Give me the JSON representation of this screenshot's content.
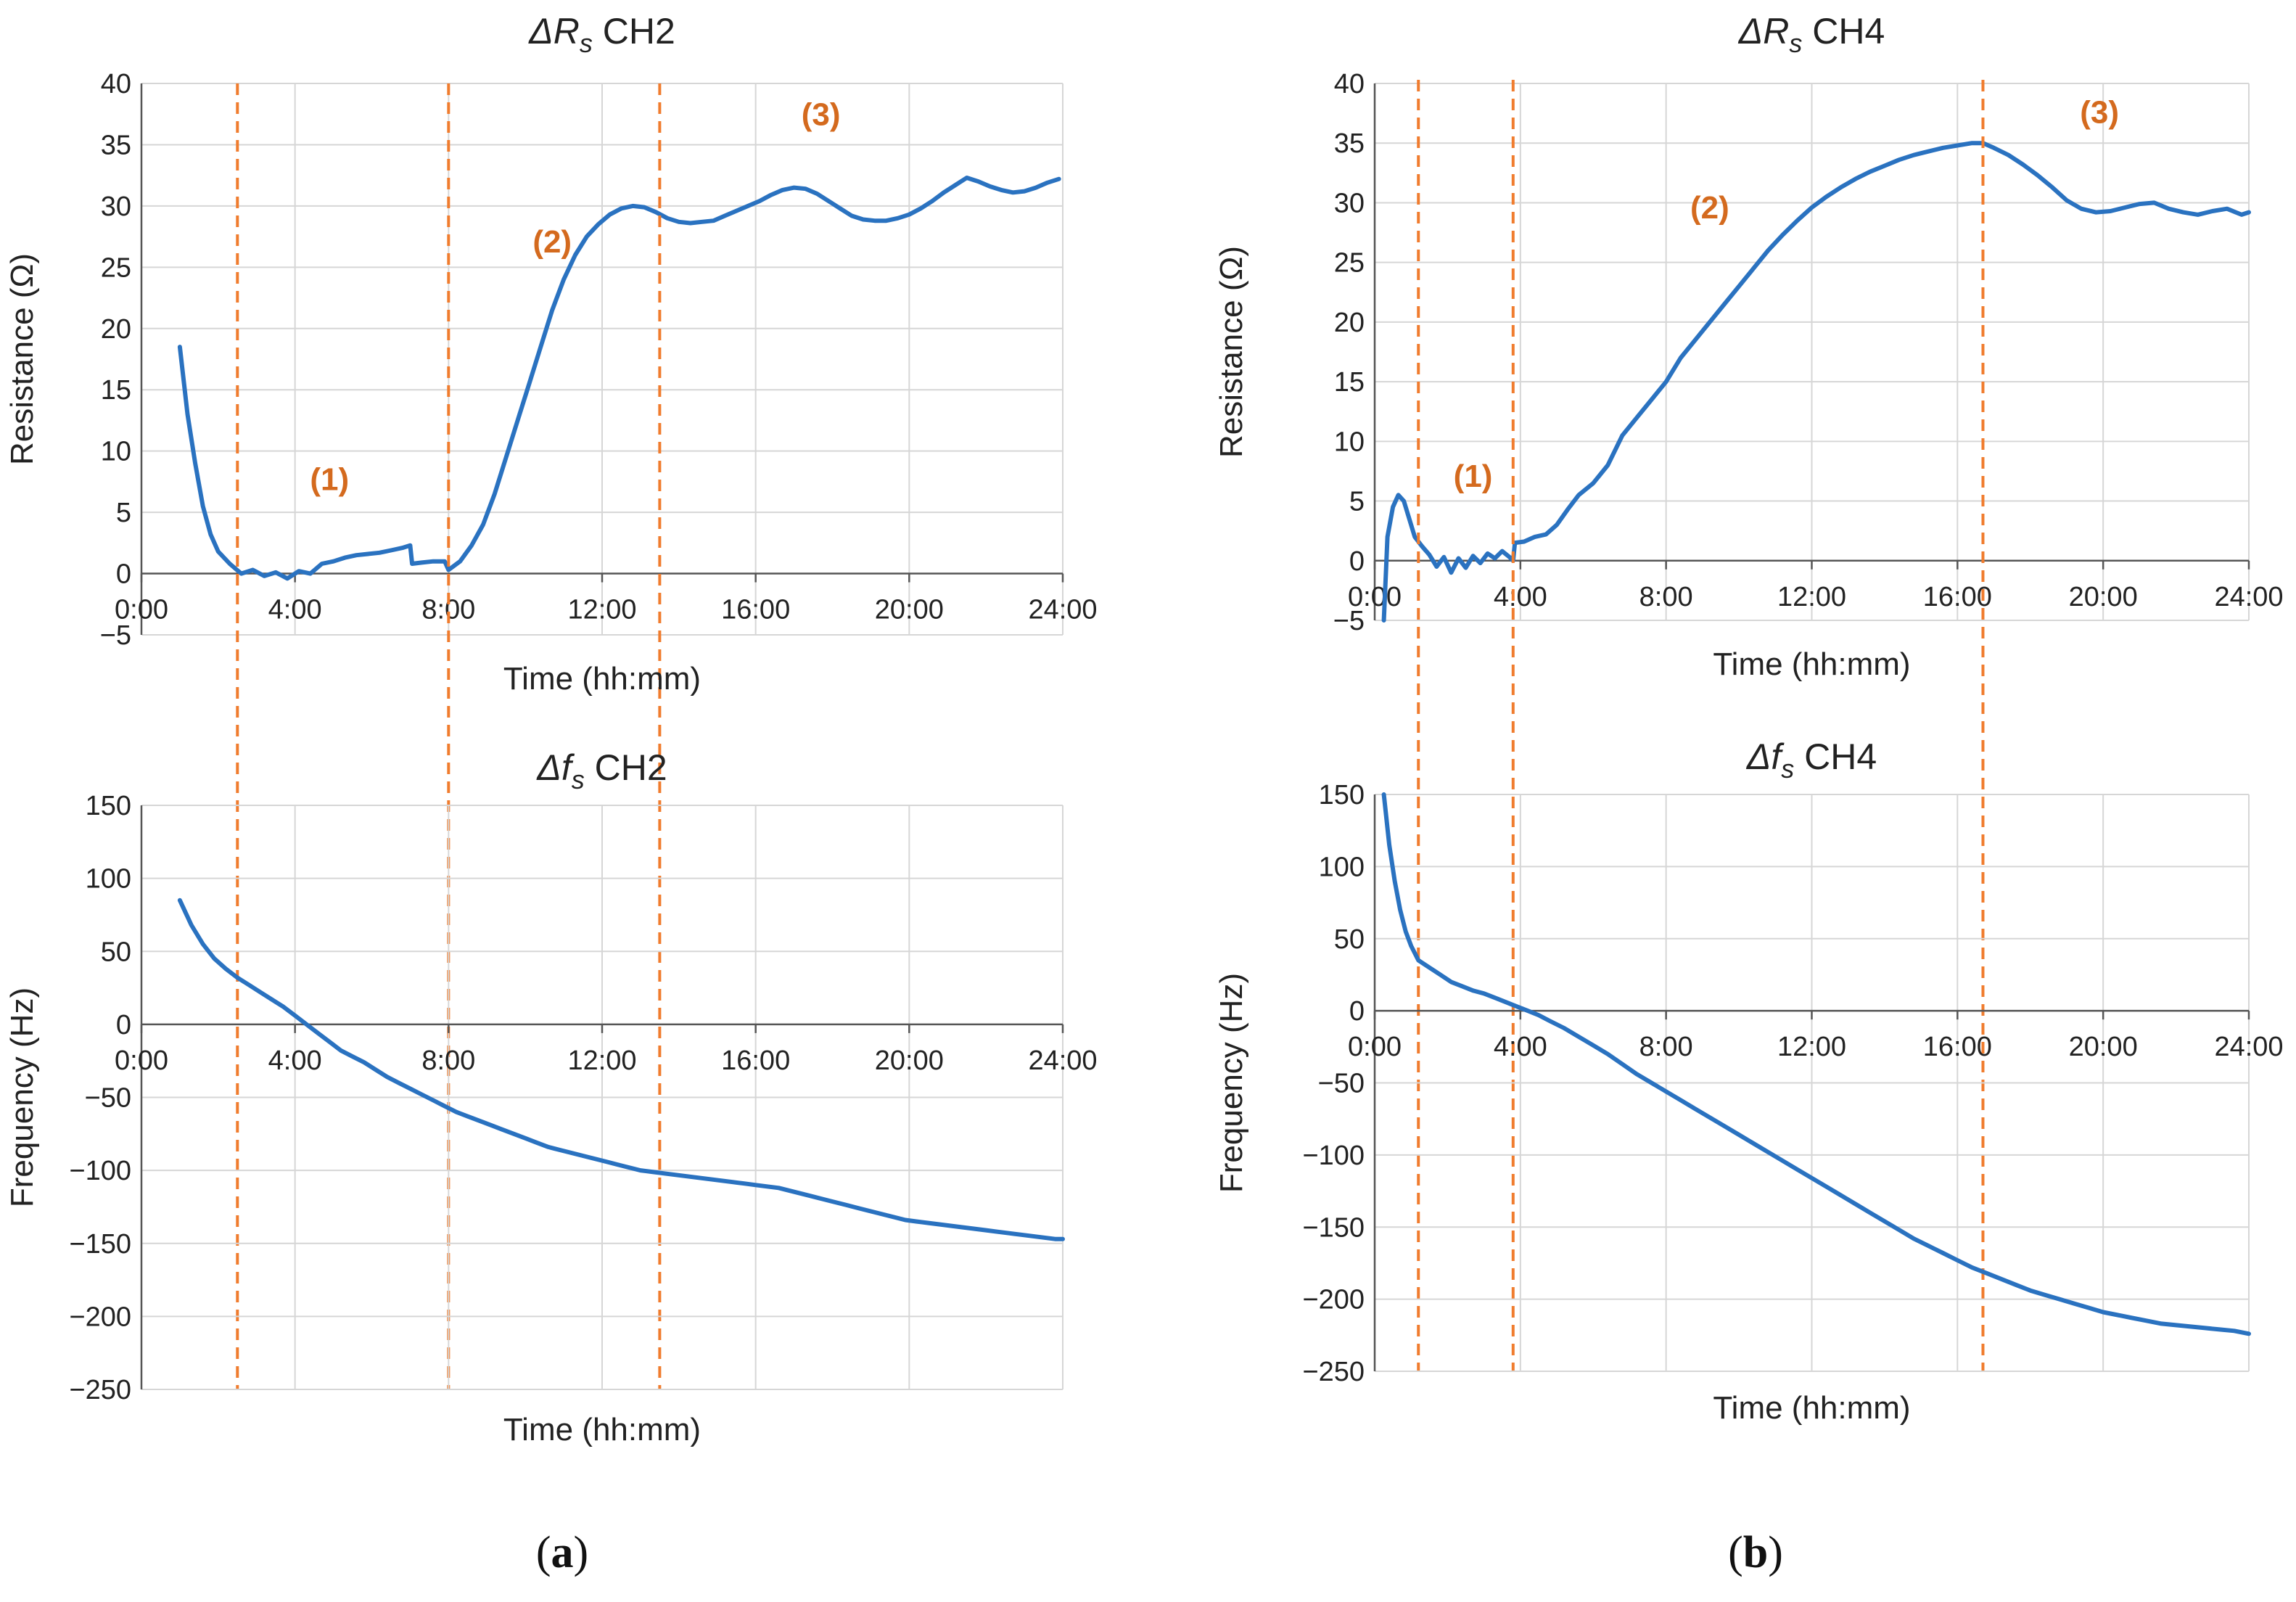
{
  "colors": {
    "series": "#2a72c0",
    "marker": "#f07c2e",
    "phase_label": "#d46a1e",
    "grid": "#d6d6d6",
    "axis": "#555555"
  },
  "panel_labels": [
    {
      "open": "(",
      "letter": "a",
      "close": ")"
    },
    {
      "open": "(",
      "letter": "b",
      "close": ")"
    }
  ],
  "chart_data": [
    {
      "id": "ch2_resistance",
      "type": "line",
      "title_sym": "ΔR",
      "title_sub": "s",
      "title_rest": " CH2",
      "xlabel": "Time (hh:mm)",
      "ylabel": "Resistance (Ω)",
      "xlim": [
        0,
        24
      ],
      "ylim": [
        -5,
        40
      ],
      "xticks": [
        0,
        4,
        8,
        12,
        16,
        20,
        24
      ],
      "xtick_labels": [
        "0:00",
        "4:00",
        "8:00",
        "12:00",
        "16:00",
        "20:00",
        "24:00"
      ],
      "yticks": [
        -5,
        0,
        5,
        10,
        15,
        20,
        25,
        30,
        35,
        40
      ],
      "ytick_labels": [
        "−5",
        "0",
        "5",
        "10",
        "15",
        "20",
        "25",
        "30",
        "35",
        "40"
      ],
      "markers": [
        2.5,
        8.0,
        13.5
      ],
      "annotations": [
        {
          "text": "(1)",
          "x": 4.9,
          "y": 6.8
        },
        {
          "text": "(2)",
          "x": 10.7,
          "y": 26.2
        },
        {
          "text": "(3)",
          "x": 17.7,
          "y": 36.6
        }
      ],
      "series": [
        {
          "name": "ΔRs CH2",
          "x": [
            1.0,
            1.2,
            1.4,
            1.6,
            1.8,
            2.0,
            2.3,
            2.6,
            2.9,
            3.2,
            3.5,
            3.8,
            4.1,
            4.4,
            4.7,
            5.0,
            5.3,
            5.6,
            5.9,
            6.2,
            6.5,
            6.8,
            7.0,
            7.05,
            7.3,
            7.6,
            7.9,
            8.0,
            8.3,
            8.6,
            8.9,
            9.2,
            9.5,
            9.8,
            10.1,
            10.4,
            10.7,
            11.0,
            11.3,
            11.6,
            11.9,
            12.2,
            12.5,
            12.8,
            13.1,
            13.4,
            13.7,
            14.0,
            14.3,
            14.6,
            14.9,
            15.2,
            15.5,
            15.8,
            16.1,
            16.4,
            16.7,
            17.0,
            17.3,
            17.6,
            17.9,
            18.2,
            18.5,
            18.8,
            19.1,
            19.4,
            19.7,
            20.0,
            20.3,
            20.6,
            20.9,
            21.2,
            21.5,
            21.8,
            22.1,
            22.4,
            22.7,
            23.0,
            23.3,
            23.6,
            23.9
          ],
          "y": [
            18.5,
            13.0,
            9.0,
            5.5,
            3.2,
            1.8,
            0.8,
            0.0,
            0.3,
            -0.2,
            0.1,
            -0.4,
            0.2,
            0.0,
            0.8,
            1.0,
            1.3,
            1.5,
            1.6,
            1.7,
            1.9,
            2.1,
            2.3,
            0.8,
            0.9,
            1.0,
            1.0,
            0.3,
            1.0,
            2.3,
            4.0,
            6.5,
            9.5,
            12.5,
            15.5,
            18.5,
            21.5,
            24.0,
            26.0,
            27.5,
            28.5,
            29.3,
            29.8,
            30.0,
            29.9,
            29.5,
            29.0,
            28.7,
            28.6,
            28.7,
            28.8,
            29.2,
            29.6,
            30.0,
            30.4,
            30.9,
            31.3,
            31.5,
            31.4,
            31.0,
            30.4,
            29.8,
            29.2,
            28.9,
            28.8,
            28.8,
            29.0,
            29.3,
            29.8,
            30.4,
            31.1,
            31.7,
            32.3,
            32.0,
            31.6,
            31.3,
            31.1,
            31.2,
            31.5,
            31.9,
            32.2
          ]
        }
      ]
    },
    {
      "id": "ch2_frequency",
      "type": "line",
      "title_sym": "Δf",
      "title_sub": "s",
      "title_rest": " CH2",
      "xlabel": "Time (hh:mm)",
      "ylabel": "Frequency (Hz)",
      "xlim": [
        0,
        24
      ],
      "ylim": [
        -250,
        150
      ],
      "xticks": [
        0,
        4,
        8,
        12,
        16,
        20,
        24
      ],
      "xtick_labels": [
        "0:00",
        "4:00",
        "8:00",
        "12:00",
        "16:00",
        "20:00",
        "24:00"
      ],
      "yticks": [
        -250,
        -200,
        -150,
        -100,
        -50,
        0,
        50,
        100,
        150
      ],
      "ytick_labels": [
        "−250",
        "−200",
        "−150",
        "−100",
        "−50",
        "0",
        "50",
        "100",
        "150"
      ],
      "markers": [
        2.5,
        8.0,
        13.5
      ],
      "annotations": [],
      "series": [
        {
          "name": "Δfs CH2",
          "x": [
            1.0,
            1.3,
            1.6,
            1.9,
            2.2,
            2.5,
            2.8,
            3.1,
            3.4,
            3.7,
            4.0,
            4.3,
            4.6,
            4.9,
            5.2,
            5.5,
            5.8,
            6.1,
            6.4,
            6.7,
            7.0,
            7.3,
            7.6,
            7.9,
            8.2,
            8.5,
            8.8,
            9.1,
            9.4,
            9.7,
            10.0,
            10.3,
            10.6,
            10.9,
            11.2,
            11.5,
            11.8,
            12.1,
            12.4,
            12.7,
            13.0,
            13.3,
            13.6,
            13.9,
            14.2,
            14.5,
            14.8,
            15.1,
            15.4,
            15.7,
            16.0,
            16.3,
            16.6,
            16.9,
            17.2,
            17.5,
            17.8,
            18.1,
            18.4,
            18.7,
            19.0,
            19.3,
            19.6,
            19.9,
            20.2,
            20.5,
            20.8,
            21.1,
            21.4,
            21.7,
            22.0,
            22.3,
            22.6,
            22.9,
            23.2,
            23.5,
            23.8,
            24.0
          ],
          "y": [
            85,
            68,
            55,
            45,
            38,
            32,
            27,
            22,
            17,
            12,
            6,
            0,
            -6,
            -12,
            -18,
            -22,
            -26,
            -31,
            -36,
            -40,
            -44,
            -48,
            -52,
            -56,
            -60,
            -63,
            -66,
            -69,
            -72,
            -75,
            -78,
            -81,
            -84,
            -86,
            -88,
            -90,
            -92,
            -94,
            -96,
            -98,
            -100,
            -101,
            -102,
            -103,
            -104,
            -105,
            -106,
            -107,
            -108,
            -109,
            -110,
            -111,
            -112,
            -114,
            -116,
            -118,
            -120,
            -122,
            -124,
            -126,
            -128,
            -130,
            -132,
            -134,
            -135,
            -136,
            -137,
            -138,
            -139,
            -140,
            -141,
            -142,
            -143,
            -144,
            -145,
            -146,
            -147,
            -147
          ]
        }
      ]
    },
    {
      "id": "ch4_resistance",
      "type": "line",
      "title_sym": "ΔR",
      "title_sub": "s",
      "title_rest": " CH4",
      "xlabel": "Time (hh:mm)",
      "ylabel": "Resistance (Ω)",
      "xlim": [
        0,
        24
      ],
      "ylim": [
        -5,
        40
      ],
      "xticks": [
        0,
        4,
        8,
        12,
        16,
        20,
        24
      ],
      "xtick_labels": [
        "0:00",
        "4:00",
        "8:00",
        "12:00",
        "16:00",
        "20:00",
        "24:00"
      ],
      "yticks": [
        -5,
        0,
        5,
        10,
        15,
        20,
        25,
        30,
        35,
        40
      ],
      "ytick_labels": [
        "−5",
        "0",
        "5",
        "10",
        "15",
        "20",
        "25",
        "30",
        "35",
        "40"
      ],
      "markers": [
        1.2,
        3.8,
        16.7
      ],
      "annotations": [
        {
          "text": "(1)",
          "x": 2.7,
          "y": 6.2
        },
        {
          "text": "(2)",
          "x": 9.2,
          "y": 28.7
        },
        {
          "text": "(3)",
          "x": 19.9,
          "y": 36.7
        }
      ],
      "series": [
        {
          "name": "ΔRs CH4",
          "x": [
            0.25,
            0.35,
            0.5,
            0.65,
            0.8,
            0.95,
            1.1,
            1.3,
            1.5,
            1.7,
            1.9,
            2.1,
            2.3,
            2.5,
            2.7,
            2.9,
            3.1,
            3.3,
            3.5,
            3.7,
            3.8,
            3.85,
            4.1,
            4.4,
            4.7,
            5.0,
            5.3,
            5.6,
            6.0,
            6.4,
            6.8,
            7.2,
            7.6,
            8.0,
            8.4,
            8.8,
            9.2,
            9.6,
            10.0,
            10.4,
            10.8,
            11.2,
            11.6,
            12.0,
            12.4,
            12.8,
            13.2,
            13.6,
            14.0,
            14.4,
            14.8,
            15.2,
            15.6,
            16.0,
            16.4,
            16.7,
            17.0,
            17.4,
            17.8,
            18.2,
            18.6,
            19.0,
            19.4,
            19.8,
            20.2,
            20.6,
            21.0,
            21.4,
            21.8,
            22.2,
            22.6,
            23.0,
            23.4,
            23.8,
            24.0
          ],
          "y": [
            -5.0,
            2.0,
            4.5,
            5.5,
            5.0,
            3.5,
            2.0,
            1.2,
            0.5,
            -0.5,
            0.3,
            -1.0,
            0.2,
            -0.6,
            0.4,
            -0.2,
            0.6,
            0.2,
            0.8,
            0.3,
            0.0,
            1.5,
            1.6,
            2.0,
            2.2,
            3.0,
            4.3,
            5.5,
            6.5,
            8.0,
            10.5,
            12.0,
            13.5,
            15.0,
            17.0,
            18.5,
            20.0,
            21.5,
            23.0,
            24.5,
            26.0,
            27.3,
            28.5,
            29.6,
            30.5,
            31.3,
            32.0,
            32.6,
            33.1,
            33.6,
            34.0,
            34.3,
            34.6,
            34.8,
            35.0,
            35.0,
            34.6,
            34.0,
            33.2,
            32.3,
            31.3,
            30.2,
            29.5,
            29.2,
            29.3,
            29.6,
            29.9,
            30.0,
            29.5,
            29.2,
            29.0,
            29.3,
            29.5,
            29.0,
            29.2
          ]
        }
      ]
    },
    {
      "id": "ch4_frequency",
      "type": "line",
      "title_sym": "Δf",
      "title_sub": "s",
      "title_rest": " CH4",
      "xlabel": "Time (hh:mm)",
      "ylabel": "Frequency (Hz)",
      "xlim": [
        0,
        24
      ],
      "ylim": [
        -250,
        150
      ],
      "xticks": [
        0,
        4,
        8,
        12,
        16,
        20,
        24
      ],
      "xtick_labels": [
        "0:00",
        "4:00",
        "8:00",
        "12:00",
        "16:00",
        "20:00",
        "24:00"
      ],
      "yticks": [
        -250,
        -200,
        -150,
        -100,
        -50,
        0,
        50,
        100,
        150
      ],
      "ytick_labels": [
        "−250",
        "−200",
        "−150",
        "−100",
        "−50",
        "0",
        "50",
        "100",
        "150"
      ],
      "markers": [
        1.2,
        3.8,
        16.7
      ],
      "annotations": [],
      "series": [
        {
          "name": "Δfs CH4",
          "x": [
            0.25,
            0.4,
            0.55,
            0.7,
            0.85,
            1.0,
            1.2,
            1.5,
            1.8,
            2.1,
            2.4,
            2.7,
            3.0,
            3.3,
            3.6,
            3.9,
            4.2,
            4.5,
            4.8,
            5.2,
            5.6,
            6.0,
            6.4,
            6.8,
            7.2,
            7.6,
            8.0,
            8.4,
            8.8,
            9.2,
            9.6,
            10.0,
            10.4,
            10.8,
            11.2,
            11.6,
            12.0,
            12.4,
            12.8,
            13.2,
            13.6,
            14.0,
            14.4,
            14.8,
            15.2,
            15.6,
            16.0,
            16.4,
            16.8,
            17.2,
            17.6,
            18.0,
            18.4,
            18.8,
            19.2,
            19.6,
            20.0,
            20.4,
            20.8,
            21.2,
            21.6,
            22.0,
            22.4,
            22.8,
            23.2,
            23.6,
            24.0
          ],
          "y": [
            150,
            115,
            90,
            70,
            55,
            45,
            35,
            30,
            25,
            20,
            17,
            14,
            12,
            9,
            6,
            3,
            0,
            -3,
            -7,
            -12,
            -18,
            -24,
            -30,
            -37,
            -44,
            -50,
            -56,
            -62,
            -68,
            -74,
            -80,
            -86,
            -92,
            -98,
            -104,
            -110,
            -116,
            -122,
            -128,
            -134,
            -140,
            -146,
            -152,
            -158,
            -163,
            -168,
            -173,
            -178,
            -182,
            -186,
            -190,
            -194,
            -197,
            -200,
            -203,
            -206,
            -209,
            -211,
            -213,
            -215,
            -217,
            -218,
            -219,
            -220,
            -221,
            -222,
            -224
          ]
        }
      ]
    }
  ]
}
